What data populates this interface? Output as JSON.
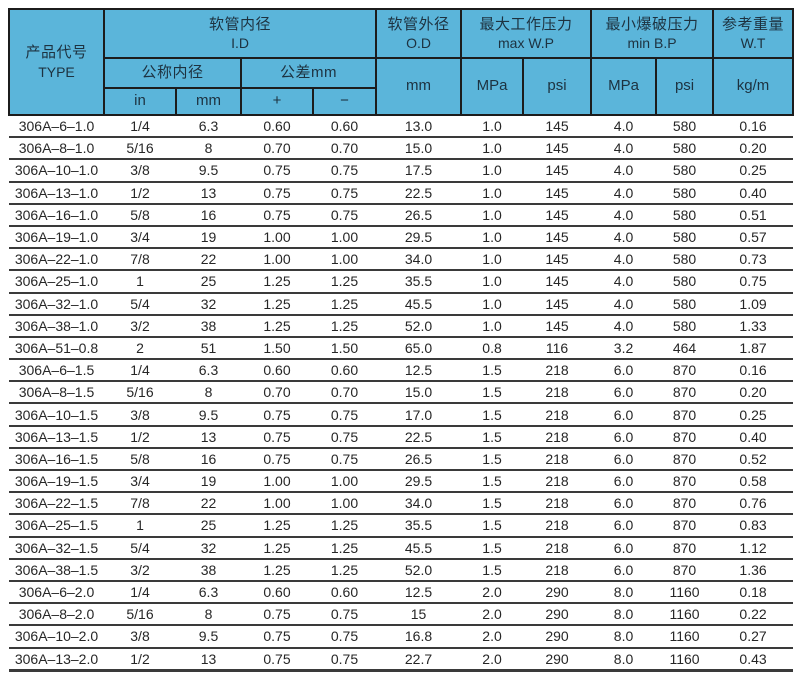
{
  "colors": {
    "header_bg": "#5bb5da",
    "header_text": "#1d3240",
    "border": "#1c1c1c",
    "row_line": "#3a3a3a",
    "data_text": "#262626",
    "page_bg": "#ffffff"
  },
  "table": {
    "header": {
      "type": {
        "zh": "产品代号",
        "en": "TYPE"
      },
      "id_group": {
        "zh": "软管内径",
        "en": "I.D"
      },
      "od_group": {
        "zh": "软管外径",
        "en": "O.D"
      },
      "wp_group": {
        "zh": "最大工作压力",
        "en": "max W.P"
      },
      "bp_group": {
        "zh": "最小爆破压力",
        "en": "min B.P"
      },
      "wt_group": {
        "zh": "参考重量",
        "en": "W.T"
      },
      "nominal_id": "公称内径",
      "tolerance": "公差mm",
      "units": {
        "in": "in",
        "mm": "mm",
        "plus": "+",
        "minus": "−",
        "od_mm": "mm",
        "wp_mpa": "MPa",
        "wp_psi": "psi",
        "bp_mpa": "MPa",
        "bp_psi": "psi",
        "wt_kgm": "kg/m"
      }
    },
    "columns": [
      "type",
      "in",
      "mm",
      "tol-plus",
      "tol-minus",
      "od-mm",
      "wp-mpa",
      "wp-psi",
      "bp-mpa",
      "bp-psi",
      "wt-kgm"
    ],
    "rows": [
      [
        "306A–6–1.0",
        "1/4",
        "6.3",
        "0.60",
        "0.60",
        "13.0",
        "1.0",
        "145",
        "4.0",
        "580",
        "0.16"
      ],
      [
        "306A–8–1.0",
        "5/16",
        "8",
        "0.70",
        "0.70",
        "15.0",
        "1.0",
        "145",
        "4.0",
        "580",
        "0.20"
      ],
      [
        "306A–10–1.0",
        "3/8",
        "9.5",
        "0.75",
        "0.75",
        "17.5",
        "1.0",
        "145",
        "4.0",
        "580",
        "0.25"
      ],
      [
        "306A–13–1.0",
        "1/2",
        "13",
        "0.75",
        "0.75",
        "22.5",
        "1.0",
        "145",
        "4.0",
        "580",
        "0.40"
      ],
      [
        "306A–16–1.0",
        "5/8",
        "16",
        "0.75",
        "0.75",
        "26.5",
        "1.0",
        "145",
        "4.0",
        "580",
        "0.51"
      ],
      [
        "306A–19–1.0",
        "3/4",
        "19",
        "1.00",
        "1.00",
        "29.5",
        "1.0",
        "145",
        "4.0",
        "580",
        "0.57"
      ],
      [
        "306A–22–1.0",
        "7/8",
        "22",
        "1.00",
        "1.00",
        "34.0",
        "1.0",
        "145",
        "4.0",
        "580",
        "0.73"
      ],
      [
        "306A–25–1.0",
        "1",
        "25",
        "1.25",
        "1.25",
        "35.5",
        "1.0",
        "145",
        "4.0",
        "580",
        "0.75"
      ],
      [
        "306A–32–1.0",
        "5/4",
        "32",
        "1.25",
        "1.25",
        "45.5",
        "1.0",
        "145",
        "4.0",
        "580",
        "1.09"
      ],
      [
        "306A–38–1.0",
        "3/2",
        "38",
        "1.25",
        "1.25",
        "52.0",
        "1.0",
        "145",
        "4.0",
        "580",
        "1.33"
      ],
      [
        "306A–51–0.8",
        "2",
        "51",
        "1.50",
        "1.50",
        "65.0",
        "0.8",
        "116",
        "3.2",
        "464",
        "1.87"
      ],
      [
        "306A–6–1.5",
        "1/4",
        "6.3",
        "0.60",
        "0.60",
        "12.5",
        "1.5",
        "218",
        "6.0",
        "870",
        "0.16"
      ],
      [
        "306A–8–1.5",
        "5/16",
        "8",
        "0.70",
        "0.70",
        "15.0",
        "1.5",
        "218",
        "6.0",
        "870",
        "0.20"
      ],
      [
        "306A–10–1.5",
        "3/8",
        "9.5",
        "0.75",
        "0.75",
        "17.0",
        "1.5",
        "218",
        "6.0",
        "870",
        "0.25"
      ],
      [
        "306A–13–1.5",
        "1/2",
        "13",
        "0.75",
        "0.75",
        "22.5",
        "1.5",
        "218",
        "6.0",
        "870",
        "0.40"
      ],
      [
        "306A–16–1.5",
        "5/8",
        "16",
        "0.75",
        "0.75",
        "26.5",
        "1.5",
        "218",
        "6.0",
        "870",
        "0.52"
      ],
      [
        "306A–19–1.5",
        "3/4",
        "19",
        "1.00",
        "1.00",
        "29.5",
        "1.5",
        "218",
        "6.0",
        "870",
        "0.58"
      ],
      [
        "306A–22–1.5",
        "7/8",
        "22",
        "1.00",
        "1.00",
        "34.0",
        "1.5",
        "218",
        "6.0",
        "870",
        "0.76"
      ],
      [
        "306A–25–1.5",
        "1",
        "25",
        "1.25",
        "1.25",
        "35.5",
        "1.5",
        "218",
        "6.0",
        "870",
        "0.83"
      ],
      [
        "306A–32–1.5",
        "5/4",
        "32",
        "1.25",
        "1.25",
        "45.5",
        "1.5",
        "218",
        "6.0",
        "870",
        "1.12"
      ],
      [
        "306A–38–1.5",
        "3/2",
        "38",
        "1.25",
        "1.25",
        "52.0",
        "1.5",
        "218",
        "6.0",
        "870",
        "1.36"
      ],
      [
        "306A–6–2.0",
        "1/4",
        "6.3",
        "0.60",
        "0.60",
        "12.5",
        "2.0",
        "290",
        "8.0",
        "1160",
        "0.18"
      ],
      [
        "306A–8–2.0",
        "5/16",
        "8",
        "0.75",
        "0.75",
        "15",
        "2.0",
        "290",
        "8.0",
        "1160",
        "0.22"
      ],
      [
        "306A–10–2.0",
        "3/8",
        "9.5",
        "0.75",
        "0.75",
        "16.8",
        "2.0",
        "290",
        "8.0",
        "1160",
        "0.27"
      ],
      [
        "306A–13–2.0",
        "1/2",
        "13",
        "0.75",
        "0.75",
        "22.7",
        "2.0",
        "290",
        "8.0",
        "1160",
        "0.43"
      ]
    ]
  }
}
